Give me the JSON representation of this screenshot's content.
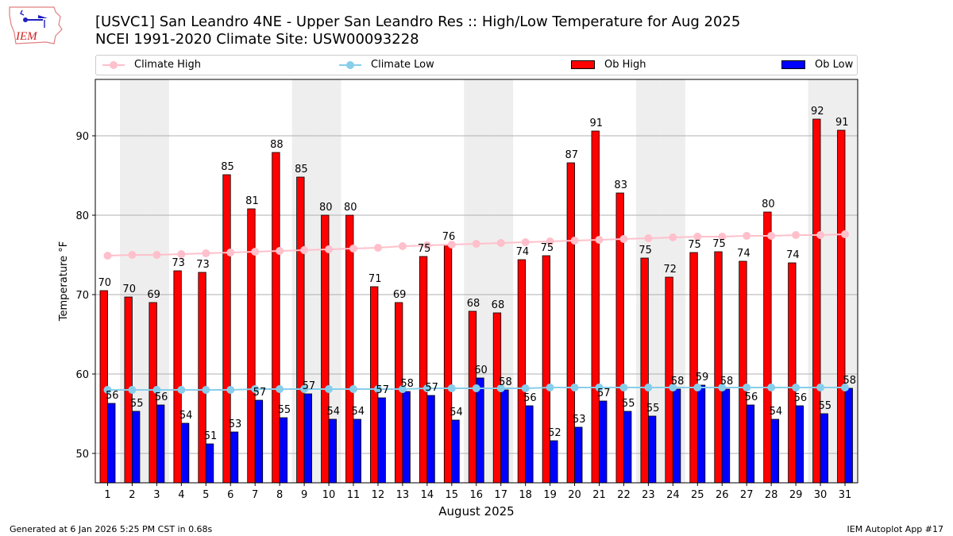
{
  "header": {
    "title_line1": "[USVC1] San Leandro 4NE - Upper San Leandro Res :: High/Low Temperature for Aug 2025",
    "title_line2": "NCEI 1991-2020 Climate Site: USW00093228",
    "logo_text": "IEM"
  },
  "legend": {
    "items": [
      {
        "label": "Climate High",
        "kind": "line",
        "color": "#ffc0cb"
      },
      {
        "label": "Climate Low",
        "kind": "line",
        "color": "#87ceeb"
      },
      {
        "label": "Ob High",
        "kind": "bar",
        "color": "#ff0000"
      },
      {
        "label": "Ob Low",
        "kind": "bar",
        "color": "#0000ff"
      }
    ]
  },
  "footer": {
    "left": "Generated at 6 Jan 2026 5:25 PM CST in 0.68s",
    "right": "IEM Autoplot App #17"
  },
  "chart_data": {
    "type": "bar",
    "title": "[USVC1] San Leandro 4NE - Upper San Leandro Res :: High/Low Temperature for Aug 2025",
    "subtitle": "NCEI 1991-2020 Climate Site: USW00093228",
    "xlabel": "August 2025",
    "ylabel": "Temperature °F",
    "ylim": [
      46.3,
      97.1
    ],
    "yticks": [
      50,
      60,
      70,
      80,
      90
    ],
    "grid": "y",
    "legend_position": "top",
    "weekend_shading_days": [
      2,
      3,
      9,
      10,
      16,
      17,
      23,
      24,
      30,
      31
    ],
    "shading_color": "#eeeeee",
    "categories": [
      1,
      2,
      3,
      4,
      5,
      6,
      7,
      8,
      9,
      10,
      11,
      12,
      13,
      14,
      15,
      16,
      17,
      18,
      19,
      20,
      21,
      22,
      23,
      24,
      25,
      26,
      27,
      28,
      29,
      30,
      31
    ],
    "series": [
      {
        "name": "Ob High",
        "kind": "bar",
        "color": "#ff0000",
        "values": [
          70.5,
          69.7,
          69.0,
          73.0,
          72.8,
          85.1,
          80.8,
          87.9,
          84.8,
          80.0,
          80.0,
          71.0,
          69.0,
          74.8,
          76.3,
          67.9,
          67.7,
          74.4,
          74.9,
          86.6,
          90.6,
          82.8,
          74.6,
          72.2,
          75.3,
          75.4,
          74.2,
          80.4,
          74.0,
          92.1,
          90.7
        ],
        "labels": [
          "70",
          "70",
          "69",
          "73",
          "73",
          "85",
          "81",
          "88",
          "85",
          "80",
          "80",
          "71",
          "69",
          "75",
          "76",
          "68",
          "68",
          "74",
          "75",
          "87",
          "91",
          "83",
          "75",
          "72",
          "75",
          "75",
          "74",
          "80",
          "74",
          "92",
          "91"
        ]
      },
      {
        "name": "Ob Low",
        "kind": "bar",
        "color": "#0000ff",
        "values": [
          56.3,
          55.3,
          56.1,
          53.8,
          51.2,
          52.7,
          56.7,
          54.5,
          57.5,
          54.3,
          54.3,
          57.0,
          57.8,
          57.3,
          54.2,
          59.5,
          58.0,
          56.0,
          51.6,
          53.3,
          56.6,
          55.3,
          54.7,
          58.1,
          58.6,
          58.1,
          56.1,
          54.3,
          56.0,
          55.0,
          58.2
        ],
        "labels": [
          "56",
          "55",
          "56",
          "54",
          "51",
          "53",
          "57",
          "55",
          "57",
          "54",
          "54",
          "57",
          "58",
          "57",
          "54",
          "60",
          "58",
          "56",
          "52",
          "53",
          "57",
          "55",
          "55",
          "58",
          "59",
          "58",
          "56",
          "54",
          "56",
          "55",
          "58"
        ]
      },
      {
        "name": "Climate High",
        "kind": "line",
        "color": "#ffc0cb",
        "values": [
          74.9,
          75.0,
          75.0,
          75.1,
          75.2,
          75.3,
          75.4,
          75.5,
          75.6,
          75.7,
          75.8,
          75.9,
          76.1,
          76.2,
          76.3,
          76.4,
          76.5,
          76.6,
          76.7,
          76.8,
          76.9,
          77.0,
          77.1,
          77.2,
          77.3,
          77.3,
          77.4,
          77.4,
          77.5,
          77.5,
          77.6
        ]
      },
      {
        "name": "Climate Low",
        "kind": "line",
        "color": "#87ceeb",
        "values": [
          58.0,
          58.0,
          58.0,
          58.0,
          58.0,
          58.0,
          58.1,
          58.1,
          58.1,
          58.1,
          58.1,
          58.1,
          58.1,
          58.2,
          58.2,
          58.2,
          58.2,
          58.2,
          58.3,
          58.3,
          58.3,
          58.3,
          58.3,
          58.3,
          58.3,
          58.3,
          58.3,
          58.3,
          58.3,
          58.3,
          58.3
        ]
      }
    ]
  }
}
